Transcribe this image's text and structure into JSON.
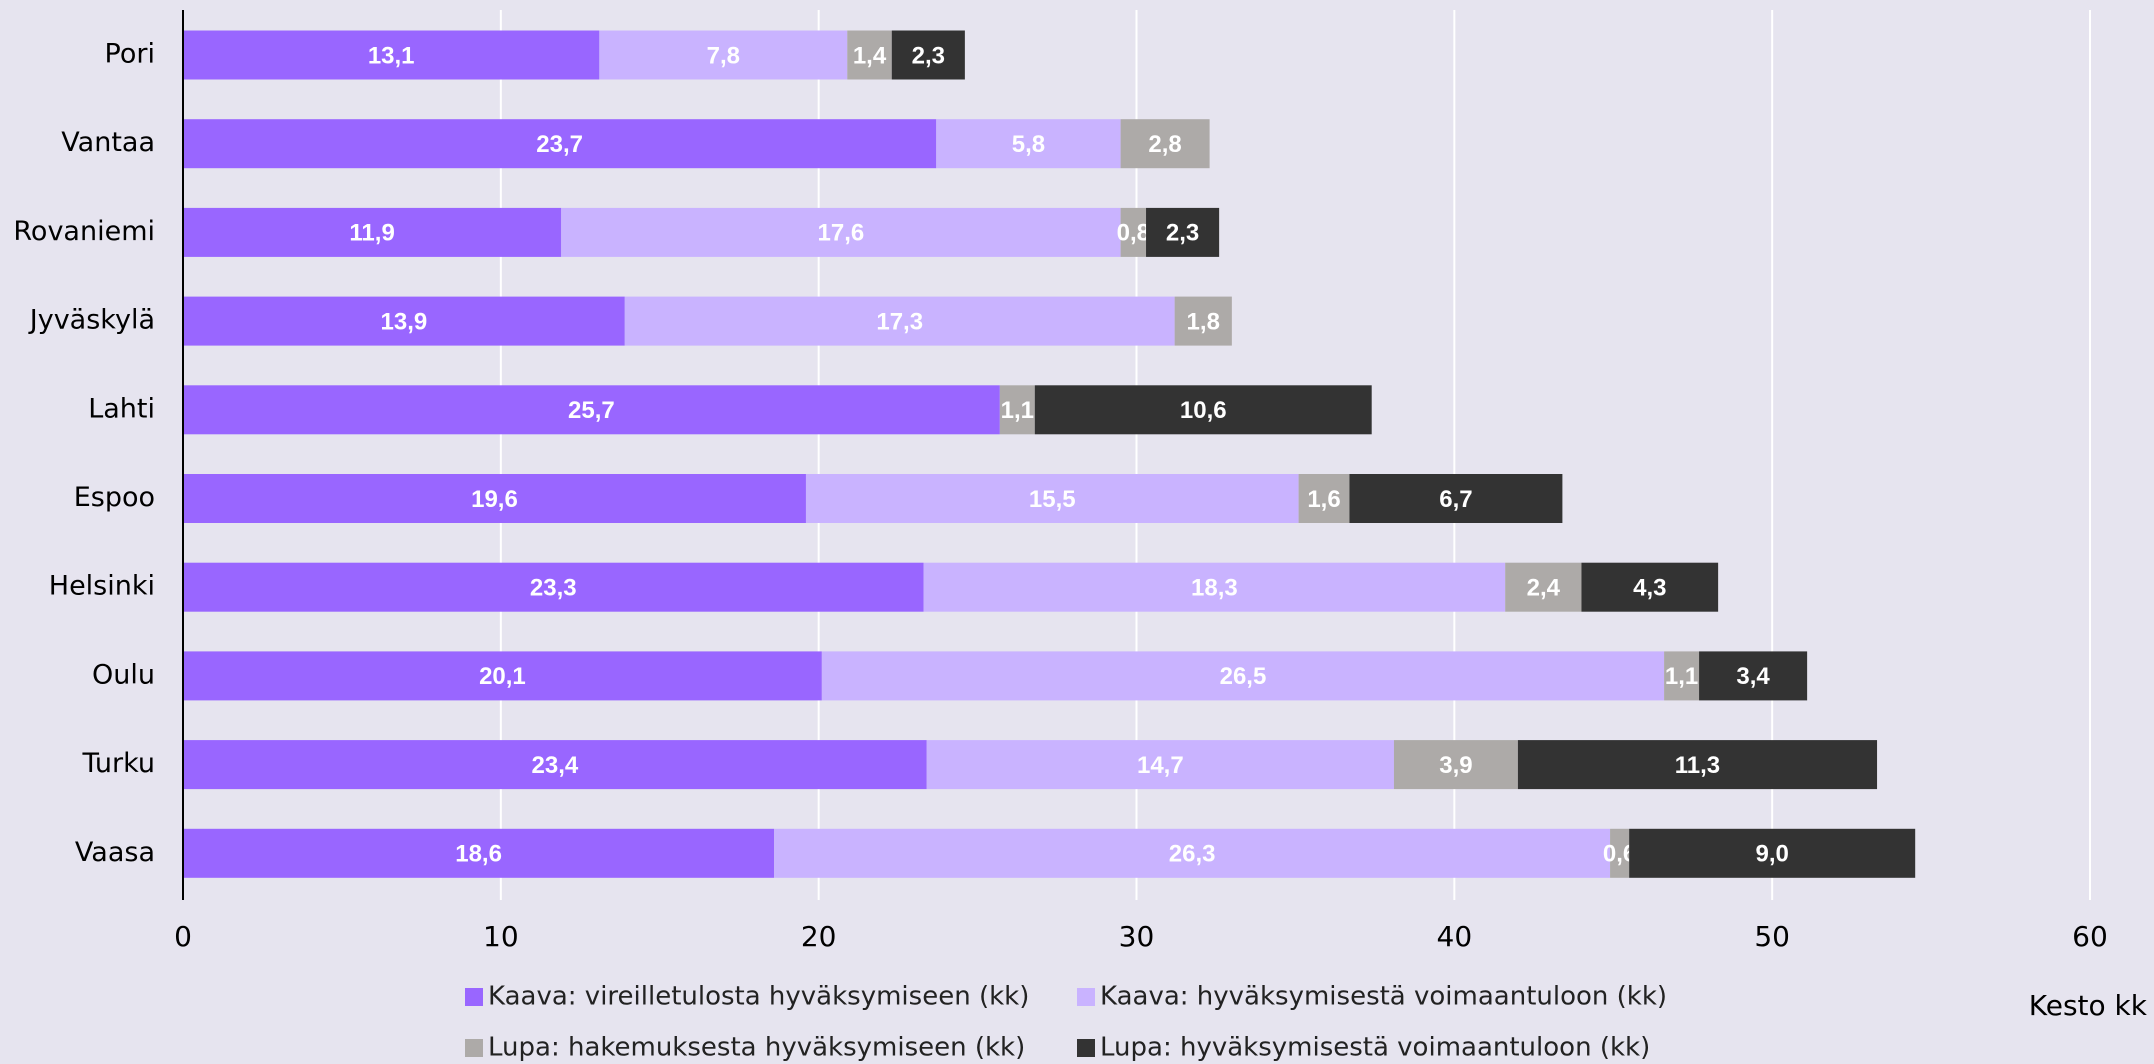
{
  "chart_data": {
    "type": "stacked_barh",
    "x_label": "Kesto kk",
    "categories": [
      "Pori",
      "Vantaa",
      "Rovaniemi",
      "Jyväskylä",
      "Lahti",
      "Espoo",
      "Helsinki",
      "Oulu",
      "Turku",
      "Vaasa"
    ],
    "series": [
      {
        "name": "Kaava: vireilletulosta hyväksymiseen (kk)",
        "color": "#9966ff",
        "values": [
          13.1,
          23.7,
          11.9,
          13.9,
          25.7,
          19.6,
          23.3,
          20.1,
          23.4,
          18.6
        ],
        "value_labels": [
          "13,1",
          "23,7",
          "11,9",
          "13,9",
          "25,7",
          "19,6",
          "23,3",
          "20,1",
          "23,4",
          "18,6"
        ]
      },
      {
        "name": "Kaava: hyväksymisestä voimaantuloon (kk)",
        "color": "#c9b3ff",
        "values": [
          7.8,
          5.8,
          17.6,
          17.3,
          null,
          15.5,
          18.3,
          26.5,
          14.7,
          26.3
        ],
        "value_labels": [
          "7,8",
          "5,8",
          "17,6",
          "17,3",
          null,
          "15,5",
          "18,3",
          "26,5",
          "14,7",
          "26,3"
        ]
      },
      {
        "name": "Lupa: hakemuksesta hyväksymiseen (kk)",
        "color": "#adaaa8",
        "values": [
          1.4,
          2.8,
          0.8,
          1.8,
          1.1,
          1.6,
          2.4,
          1.1,
          3.9,
          0.6
        ],
        "value_labels": [
          "1,4",
          "2,8",
          "0,8",
          "1,8",
          "1,1",
          "1,6",
          "2,4",
          "1,1",
          "3,9",
          "0,6"
        ]
      },
      {
        "name": "Lupa: hyväksymisestä voimaantuloon (kk)",
        "color": "#333333",
        "values": [
          2.3,
          null,
          2.3,
          null,
          10.6,
          6.7,
          4.3,
          3.4,
          11.3,
          9.0
        ],
        "value_labels": [
          "2,3",
          null,
          "2,3",
          null,
          "10,6",
          "6,7",
          "4,3",
          "3,4",
          "11,3",
          "9,0"
        ]
      }
    ],
    "xlim": [
      0,
      60
    ],
    "xticks": [
      0,
      10,
      20,
      30,
      40,
      50,
      60
    ],
    "grid": true,
    "legend": "bottom"
  }
}
